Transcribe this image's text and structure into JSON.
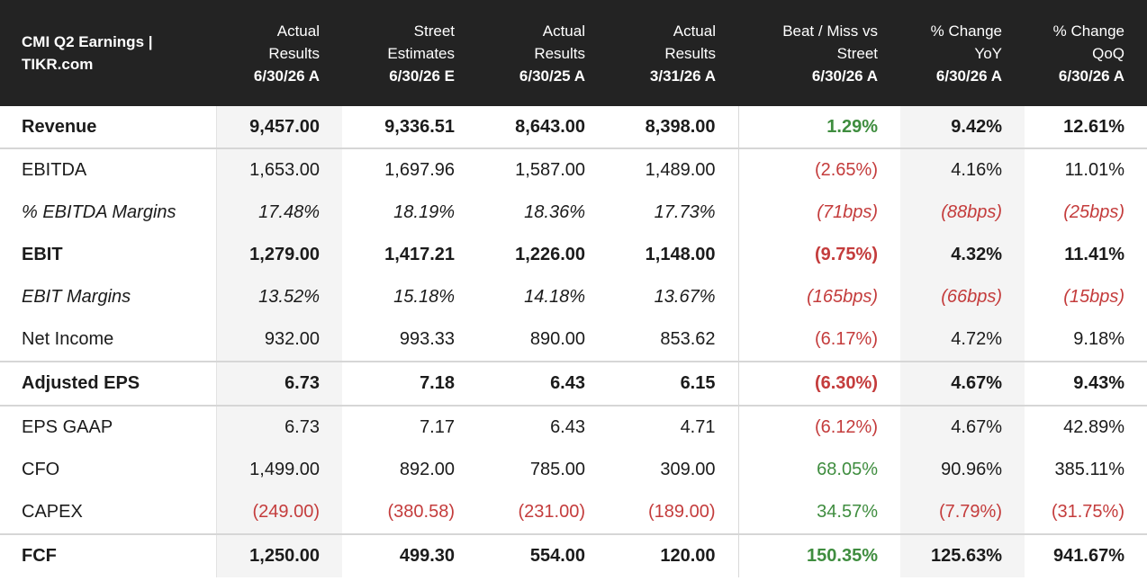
{
  "header": {
    "title_line1": "CMI Q2 Earnings |",
    "title_line2": "TIKR.com",
    "columns": [
      {
        "line1": "Actual",
        "line2": "Results",
        "line3": "6/30/26 A"
      },
      {
        "line1": "Street",
        "line2": "Estimates",
        "line3": "6/30/26 E"
      },
      {
        "line1": "Actual",
        "line2": "Results",
        "line3": "6/30/25 A"
      },
      {
        "line1": "Actual",
        "line2": "Results",
        "line3": "3/31/26 A"
      },
      {
        "line1": "Beat / Miss vs",
        "line2": "Street",
        "line3": "6/30/26 A"
      },
      {
        "line1": "% Change",
        "line2": "YoY",
        "line3": "6/30/26 A"
      },
      {
        "line1": "% Change",
        "line2": "QoQ",
        "line3": "6/30/26 A"
      }
    ]
  },
  "rows": [
    {
      "label": "Revenue",
      "values": [
        "9,457.00",
        "9,336.51",
        "8,643.00",
        "8,398.00",
        "1.29%",
        "9.42%",
        "12.61%"
      ]
    },
    {
      "label": "EBITDA",
      "values": [
        "1,653.00",
        "1,697.96",
        "1,587.00",
        "1,489.00",
        "(2.65%)",
        "4.16%",
        "11.01%"
      ]
    },
    {
      "label": "% EBITDA Margins",
      "values": [
        "17.48%",
        "18.19%",
        "18.36%",
        "17.73%",
        "(71bps)",
        "(88bps)",
        "(25bps)"
      ]
    },
    {
      "label": "EBIT",
      "values": [
        "1,279.00",
        "1,417.21",
        "1,226.00",
        "1,148.00",
        "(9.75%)",
        "4.32%",
        "11.41%"
      ]
    },
    {
      "label": "EBIT Margins",
      "values": [
        "13.52%",
        "15.18%",
        "14.18%",
        "13.67%",
        "(165bps)",
        "(66bps)",
        "(15bps)"
      ]
    },
    {
      "label": "Net Income",
      "values": [
        "932.00",
        "993.33",
        "890.00",
        "853.62",
        "(6.17%)",
        "4.72%",
        "9.18%"
      ]
    },
    {
      "label": "Adjusted EPS",
      "values": [
        "6.73",
        "7.18",
        "6.43",
        "6.15",
        "(6.30%)",
        "4.67%",
        "9.43%"
      ]
    },
    {
      "label": "EPS GAAP",
      "values": [
        "6.73",
        "7.17",
        "6.43",
        "4.71",
        "(6.12%)",
        "4.67%",
        "42.89%"
      ]
    },
    {
      "label": "CFO",
      "values": [
        "1,499.00",
        "892.00",
        "785.00",
        "309.00",
        "68.05%",
        "90.96%",
        "385.11%"
      ]
    },
    {
      "label": "CAPEX",
      "values": [
        "(249.00)",
        "(380.58)",
        "(231.00)",
        "(189.00)",
        "34.57%",
        "(7.79%)",
        "(31.75%)"
      ]
    },
    {
      "label": "FCF",
      "values": [
        "1,250.00",
        "499.30",
        "554.00",
        "120.00",
        "150.35%",
        "125.63%",
        "941.67%"
      ]
    }
  ],
  "colors": {
    "header_bg": "#232323",
    "negative": "#c43c3c",
    "positive": "#3f8d3f",
    "shaded_column": "#f4f4f4"
  }
}
